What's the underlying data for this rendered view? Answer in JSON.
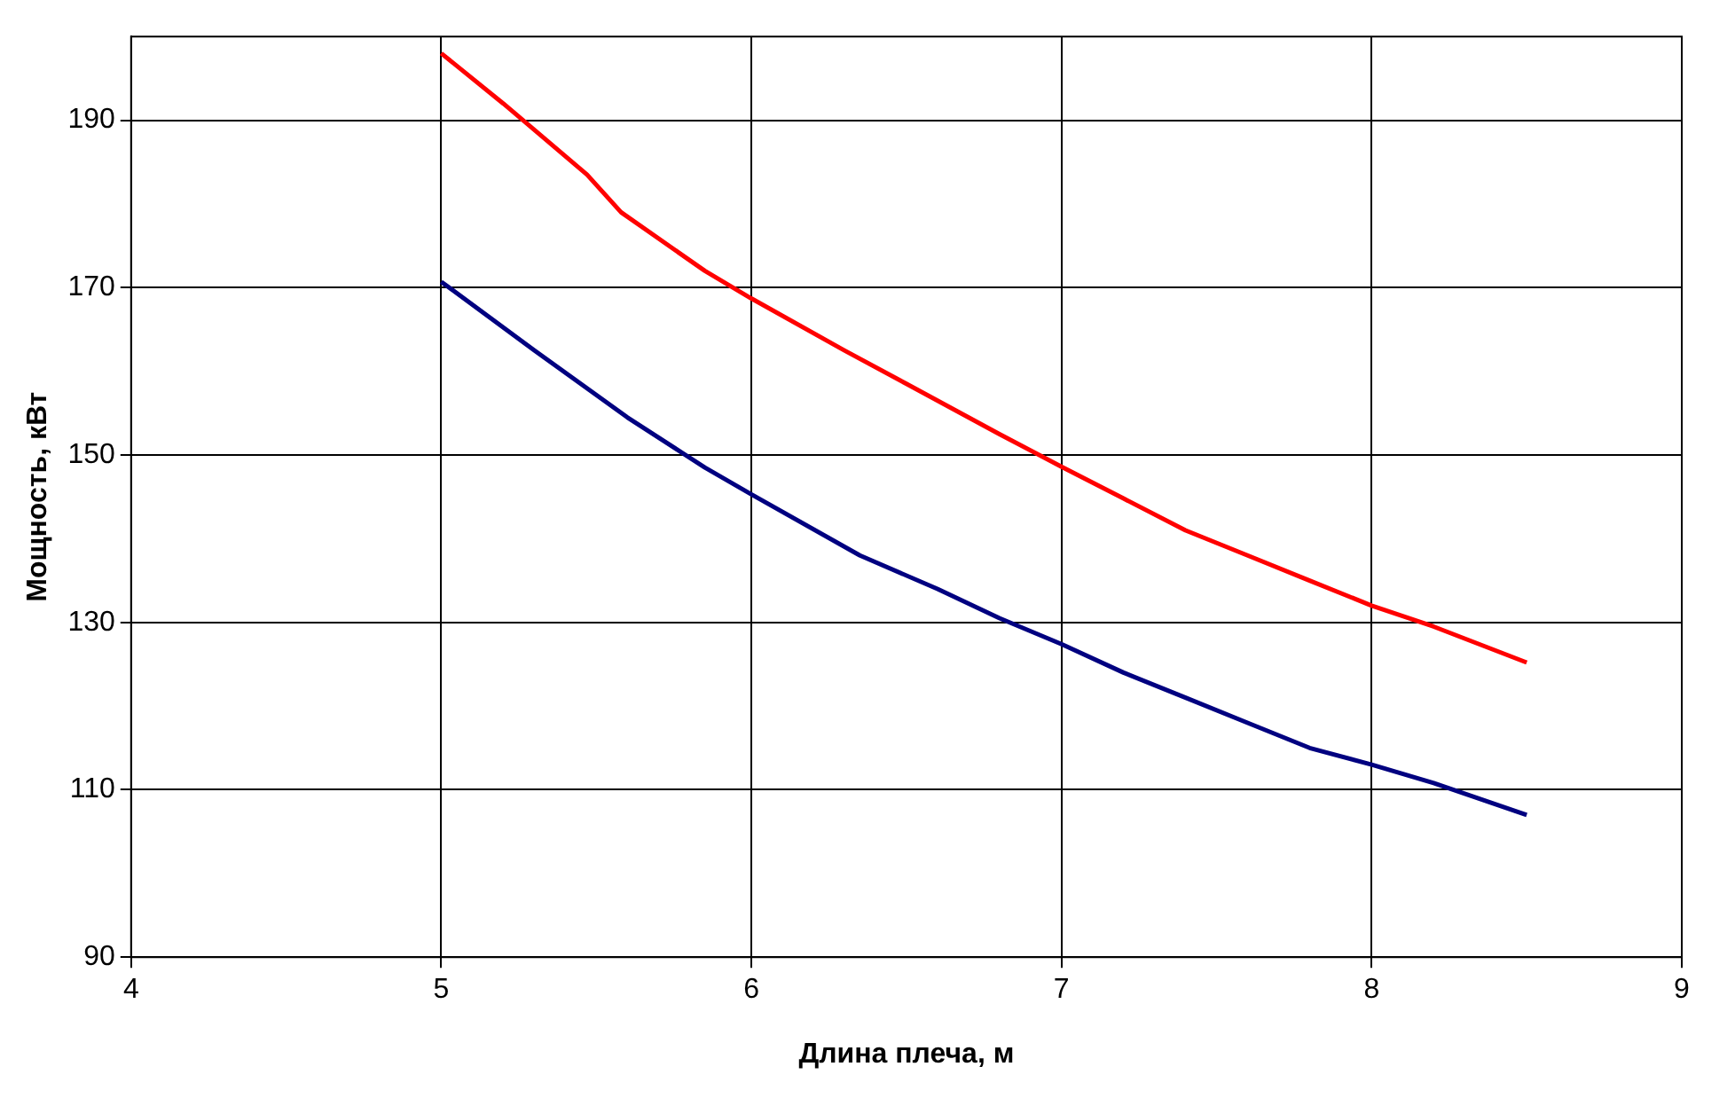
{
  "chart_data": {
    "type": "line",
    "xlabel": "Длина плеча, м",
    "ylabel": "Мощность, кВт",
    "xlim": [
      4,
      9
    ],
    "xticks": [
      4,
      5,
      6,
      7,
      8,
      9
    ],
    "ylim": [
      90,
      200
    ],
    "yticks": [
      90,
      110,
      130,
      150,
      170,
      190
    ],
    "grid": true,
    "legend": false,
    "marker": "none",
    "line_style": "solid",
    "series": [
      {
        "color": "#ff0000",
        "x": [
          5,
          5.2,
          5.47,
          5.58,
          5.85,
          6,
          6.3,
          6.5,
          6.8,
          7,
          7.2,
          7.4,
          7.6,
          7.8,
          8,
          8.2,
          8.5
        ],
        "values": [
          198,
          192,
          183.5,
          179,
          172,
          168.7,
          162.5,
          158.5,
          152.5,
          148.6,
          144.8,
          141,
          138,
          135,
          132,
          129.5,
          125.2
        ]
      },
      {
        "color": "#000080",
        "x": [
          5,
          5.3,
          5.6,
          5.85,
          6,
          6.35,
          6.6,
          6.8,
          7,
          7.2,
          7.4,
          7.6,
          7.8,
          8,
          8.2,
          8.5
        ],
        "values": [
          170.7,
          162.5,
          154.5,
          148.5,
          145.3,
          138,
          134,
          130.5,
          127.4,
          124,
          121,
          118,
          115,
          113,
          110.8,
          107
        ]
      }
    ]
  }
}
